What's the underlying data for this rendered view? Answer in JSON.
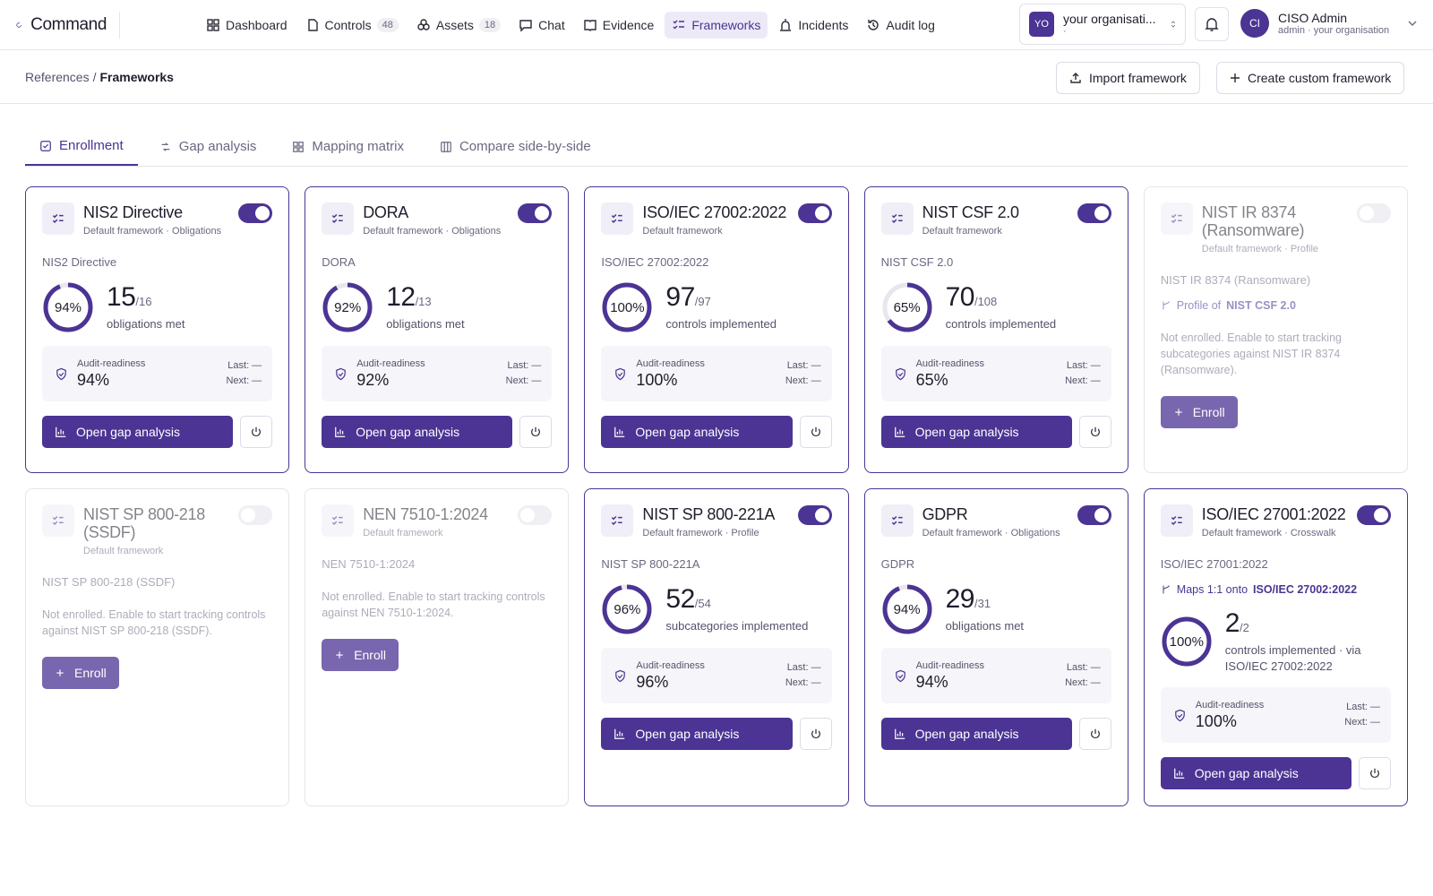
{
  "header": {
    "brand": "Command",
    "nav": [
      {
        "label": "Dashboard"
      },
      {
        "label": "Controls",
        "badge": 48
      },
      {
        "label": "Assets",
        "badge": 18
      },
      {
        "label": "Chat"
      },
      {
        "label": "Evidence"
      },
      {
        "label": "Frameworks",
        "active": true
      },
      {
        "label": "Incidents"
      },
      {
        "label": "Audit log"
      }
    ],
    "org": {
      "initials": "YO",
      "name": "your organisati...",
      "sub": "·"
    },
    "user": {
      "initials": "CI",
      "name": "CISO Admin",
      "sub": "admin · your organisation"
    }
  },
  "breadcrumb": {
    "parent": "References",
    "separator": "/",
    "current": "Frameworks"
  },
  "actions": {
    "import": "Import framework",
    "create": "Create custom framework"
  },
  "tabs": [
    "Enrollment",
    "Gap analysis",
    "Mapping matrix",
    "Compare side-by-side"
  ],
  "active_tab": 0,
  "labels": {
    "readiness": "Audit-readiness",
    "last": "Last: —",
    "next": "Next: —",
    "open": "Open gap analysis",
    "enroll": "Enroll"
  },
  "cards": [
    {
      "title": "NIS2 Directive",
      "meta": "Default framework · Obligations",
      "enabled": true,
      "subtitle": "NIS2 Directive",
      "ring": {
        "value": 94,
        "label": "94%"
      },
      "count": 15,
      "total": "/16",
      "metric": "obligations met",
      "readiness": "94%"
    },
    {
      "title": "DORA",
      "meta": "Default framework · Obligations",
      "enabled": true,
      "subtitle": "DORA",
      "ring": {
        "value": 92,
        "label": "92%"
      },
      "count": 12,
      "total": "/13",
      "metric": "obligations met",
      "readiness": "92%"
    },
    {
      "title": "ISO/IEC 27002:2022",
      "meta": "Default framework",
      "enabled": true,
      "subtitle": "ISO/IEC 27002:2022",
      "ring": {
        "value": 100,
        "label": "100%"
      },
      "count": 97,
      "total": "/97",
      "metric": "controls implemented",
      "readiness": "100%"
    },
    {
      "title": "NIST CSF 2.0",
      "meta": "Default framework",
      "enabled": true,
      "subtitle": "NIST CSF 2.0",
      "ring": {
        "value": 65,
        "label": "65%"
      },
      "count": 70,
      "total": "/108",
      "metric": "controls implemented",
      "readiness": "65%"
    },
    {
      "title": "NIST IR 8374 (Ransomware)",
      "meta": "Default framework · Profile",
      "enabled": false,
      "subtitle": "NIST IR 8374 (Ransomware)",
      "relation": {
        "prefix": "Profile of",
        "target": "NIST CSF 2.0"
      },
      "note": "Not enrolled. Enable to start tracking subcategories against NIST IR 8374 (Ransomware)."
    },
    {
      "title": "NIST SP 800-218 (SSDF)",
      "meta": "Default framework",
      "enabled": false,
      "subtitle": "NIST SP 800-218 (SSDF)",
      "note": "Not enrolled. Enable to start tracking controls against NIST SP 800-218 (SSDF)."
    },
    {
      "title": "NEN 7510-1:2024",
      "meta": "Default framework",
      "enabled": false,
      "subtitle": "NEN 7510-1:2024",
      "note": "Not enrolled. Enable to start tracking controls against NEN 7510-1:2024."
    },
    {
      "title": "NIST SP 800-221A",
      "meta": "Default framework · Profile",
      "enabled": true,
      "subtitle": "NIST SP 800-221A",
      "ring": {
        "value": 96,
        "label": "96%"
      },
      "count": 52,
      "total": "/54",
      "metric": "subcategories implemented",
      "readiness": "96%"
    },
    {
      "title": "GDPR",
      "meta": "Default framework · Obligations",
      "enabled": true,
      "subtitle": "GDPR",
      "ring": {
        "value": 94,
        "label": "94%"
      },
      "count": 29,
      "total": "/31",
      "metric": "obligations met",
      "readiness": "94%"
    },
    {
      "title": "ISO/IEC 27001:2022",
      "meta": "Default framework · Crosswalk",
      "enabled": true,
      "subtitle": "ISO/IEC 27001:2022",
      "relation": {
        "prefix": "Maps 1:1 onto",
        "target": "ISO/IEC 27002:2022"
      },
      "ring": {
        "value": 100,
        "label": "100%"
      },
      "count": 2,
      "total": "/2",
      "metric": "controls implemented · via ISO/IEC 27002:2022",
      "readiness": "100%"
    }
  ]
}
